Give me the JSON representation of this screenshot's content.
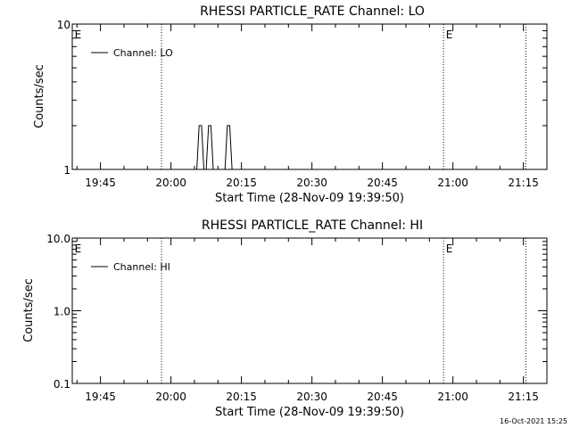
{
  "chart_data": [
    {
      "type": "line",
      "title": "RHESSI PARTICLE_RATE Channel: LO",
      "xlabel": "Start Time (28-Nov-09 19:39:50)",
      "ylabel": "Counts/sec",
      "yscale": "log",
      "ylim": [
        1,
        10
      ],
      "xlim": [
        "19:39",
        "21:20"
      ],
      "xticks": [
        "19:45",
        "20:00",
        "20:15",
        "20:30",
        "20:45",
        "21:00",
        "21:15"
      ],
      "yticks": [
        1,
        10
      ],
      "ytick_labels": [
        "1",
        "10"
      ],
      "vlines": [
        "19:58",
        "20:58",
        "21:15:30"
      ],
      "markers": [
        {
          "label": "E",
          "x": "19:39:30"
        },
        {
          "label": "E",
          "x": "20:58:30"
        }
      ],
      "legend": {
        "position": "top-left",
        "entries": [
          "Channel: LO"
        ]
      },
      "series": [
        {
          "name": "Channel: LO",
          "points": [
            [
              "19:39:50",
              1
            ],
            [
              "20:05:30",
              1
            ],
            [
              "20:06:00",
              2
            ],
            [
              "20:06:30",
              2
            ],
            [
              "20:07:00",
              1
            ],
            [
              "20:07:30",
              1
            ],
            [
              "20:08:00",
              2
            ],
            [
              "20:08:30",
              2
            ],
            [
              "20:09:00",
              1
            ],
            [
              "20:11:30",
              1
            ],
            [
              "20:12:00",
              2
            ],
            [
              "20:12:30",
              2
            ],
            [
              "20:13:00",
              1
            ],
            [
              "21:19:00",
              1
            ]
          ]
        }
      ]
    },
    {
      "type": "line",
      "title": "RHESSI PARTICLE_RATE Channel: HI",
      "xlabel": "Start Time (28-Nov-09 19:39:50)",
      "ylabel": "Counts/sec",
      "yscale": "log",
      "ylim": [
        0.1,
        10
      ],
      "xlim": [
        "19:39",
        "21:20"
      ],
      "xticks": [
        "19:45",
        "20:00",
        "20:15",
        "20:30",
        "20:45",
        "21:00",
        "21:15"
      ],
      "yticks": [
        0.1,
        1,
        10
      ],
      "ytick_labels": [
        "0.1",
        "1.0",
        "10.0"
      ],
      "vlines": [
        "19:58",
        "20:58",
        "21:15:30"
      ],
      "markers": [
        {
          "label": "E",
          "x": "19:39:30"
        },
        {
          "label": "E",
          "x": "20:58:30"
        }
      ],
      "legend": {
        "position": "top-left",
        "entries": [
          "Channel: HI"
        ]
      },
      "series": [
        {
          "name": "Channel: HI",
          "points": []
        }
      ]
    }
  ],
  "timestamp": "16-Oct-2021 15:25"
}
